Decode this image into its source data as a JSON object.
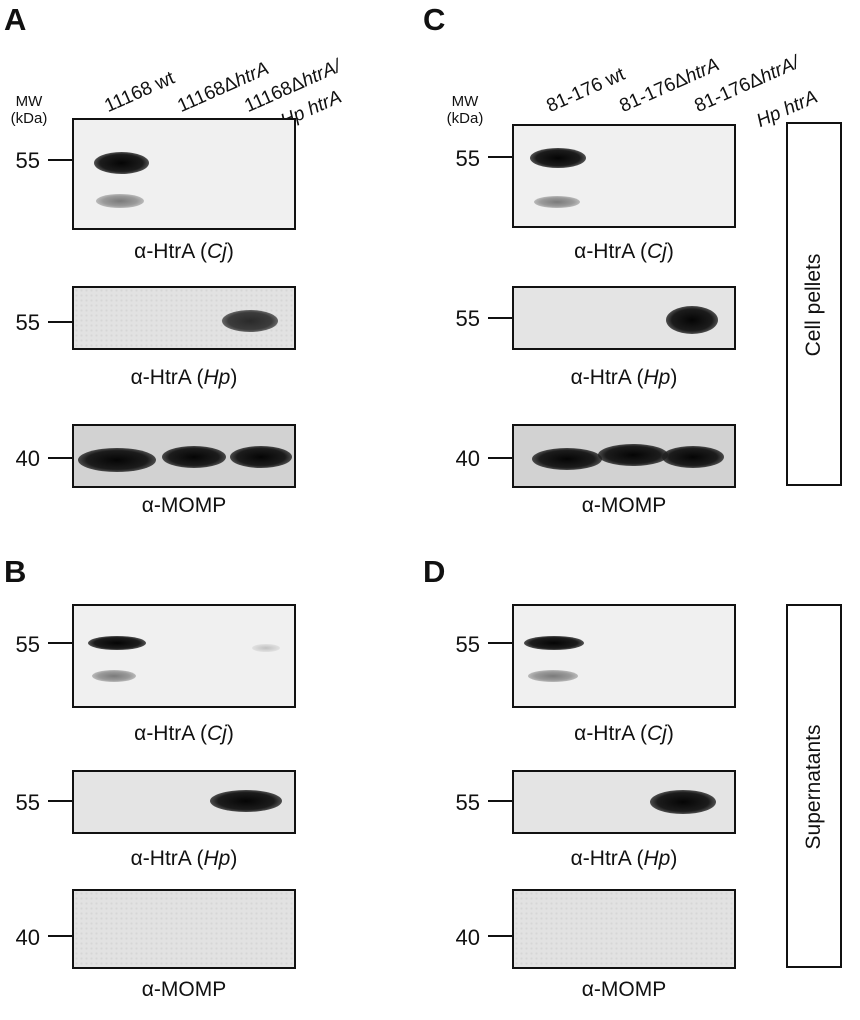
{
  "panels": {
    "A": {
      "letter": "A",
      "mw_label_1": "MW",
      "mw_label_2": "(kDa)",
      "lanes": [
        {
          "main": "11168 wt",
          "italic": "",
          "line2_italic": ""
        },
        {
          "main": "11168Δ",
          "italic": "htrA",
          "line2_italic": ""
        },
        {
          "main": "11168Δ",
          "italic": "htrA/",
          "line2_italic": "Hp htrA"
        }
      ],
      "blots": [
        {
          "mw": "55",
          "ab_prefix": "α-HtrA (",
          "ab_italic": "Cj",
          "ab_suffix": ")"
        },
        {
          "mw": "55",
          "ab_prefix": "α-HtrA (",
          "ab_italic": "Hp",
          "ab_suffix": ")"
        },
        {
          "mw": "40",
          "ab_prefix": "α-MOMP",
          "ab_italic": "",
          "ab_suffix": ""
        }
      ]
    },
    "B": {
      "letter": "B",
      "blots": [
        {
          "mw": "55",
          "ab_prefix": "α-HtrA (",
          "ab_italic": "Cj",
          "ab_suffix": ")"
        },
        {
          "mw": "55",
          "ab_prefix": "α-HtrA (",
          "ab_italic": "Hp",
          "ab_suffix": ")"
        },
        {
          "mw": "40",
          "ab_prefix": "α-MOMP",
          "ab_italic": "",
          "ab_suffix": ""
        }
      ]
    },
    "C": {
      "letter": "C",
      "mw_label_1": "MW",
      "mw_label_2": "(kDa)",
      "lanes": [
        {
          "main": "81-176 wt",
          "italic": "",
          "line2_italic": ""
        },
        {
          "main": "81-176Δ",
          "italic": "htrA",
          "line2_italic": ""
        },
        {
          "main": "81-176Δ",
          "italic": "htrA/",
          "line2_italic": "Hp htrA"
        }
      ],
      "blots": [
        {
          "mw": "55",
          "ab_prefix": "α-HtrA (",
          "ab_italic": "Cj",
          "ab_suffix": ")"
        },
        {
          "mw": "55",
          "ab_prefix": "α-HtrA (",
          "ab_italic": "Hp",
          "ab_suffix": ")"
        },
        {
          "mw": "40",
          "ab_prefix": "α-MOMP",
          "ab_italic": "",
          "ab_suffix": ""
        }
      ]
    },
    "D": {
      "letter": "D",
      "blots": [
        {
          "mw": "55",
          "ab_prefix": "α-HtrA (",
          "ab_italic": "Cj",
          "ab_suffix": ")"
        },
        {
          "mw": "55",
          "ab_prefix": "α-HtrA (",
          "ab_italic": "Hp",
          "ab_suffix": ")"
        },
        {
          "mw": "40",
          "ab_prefix": "α-MOMP",
          "ab_italic": "",
          "ab_suffix": ""
        }
      ]
    }
  },
  "side_labels": {
    "top": "Cell pellets",
    "bottom": "Supernatants"
  }
}
